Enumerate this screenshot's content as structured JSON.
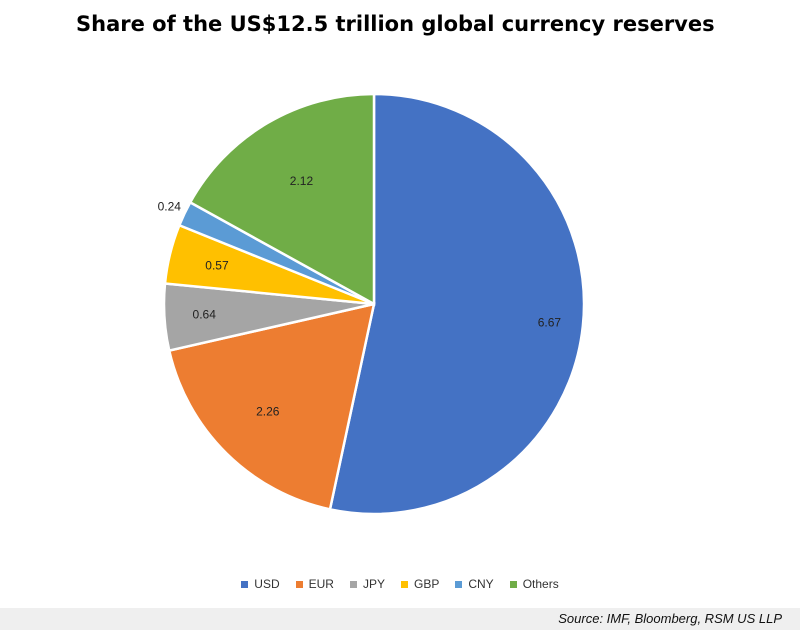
{
  "chart_data": {
    "type": "pie",
    "title": "Share of the US$12.5 trillion global currency reserves",
    "categories": [
      "USD",
      "EUR",
      "JPY",
      "GBP",
      "CNY",
      "Others"
    ],
    "values": [
      6.67,
      2.26,
      0.64,
      0.57,
      0.24,
      2.12
    ],
    "colors": [
      "#4472C4",
      "#ED7D31",
      "#A5A5A5",
      "#FFC000",
      "#5B9BD5",
      "#70AD47"
    ],
    "legend_position": "bottom",
    "start_angle": "12 o'clock",
    "direction": "clockwise"
  },
  "source": "Source: IMF, Bloomberg, RSM US LLP"
}
